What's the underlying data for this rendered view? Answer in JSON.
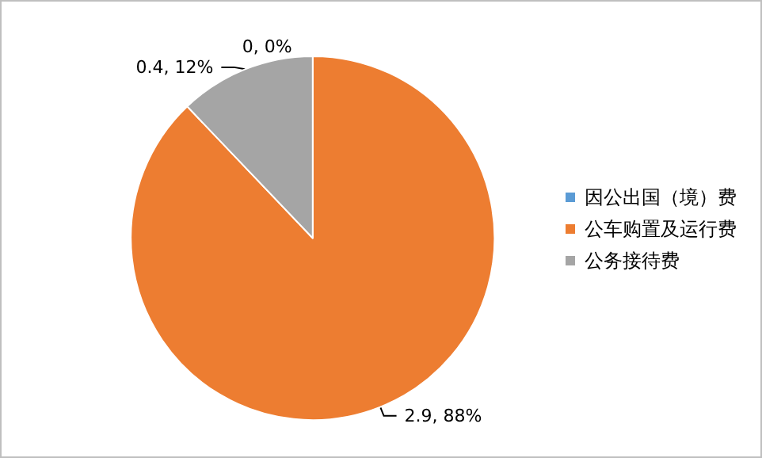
{
  "chart_data": {
    "type": "pie",
    "categories": [
      "因公出国（境）费",
      "公车购置及运行费",
      "公务接待费"
    ],
    "values": [
      0,
      2.9,
      0.4
    ],
    "colors": [
      "#5b9bd5",
      "#ed7d31",
      "#a5a5a5"
    ],
    "value_labels": [
      "0, 0%",
      "2.9, 88%",
      "0.4, 12%"
    ],
    "legend": "right"
  }
}
